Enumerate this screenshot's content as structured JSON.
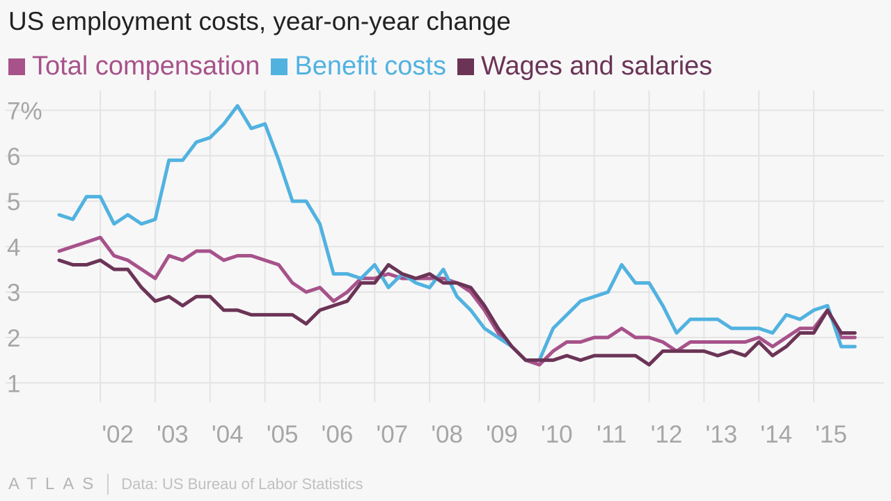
{
  "header": {
    "title": "US employment costs, year-on-year change"
  },
  "legend": {
    "items": [
      {
        "label": "Total compensation",
        "color": "#a7528a"
      },
      {
        "label": "Benefit costs",
        "color": "#51b2e0"
      },
      {
        "label": "Wages and salaries",
        "color": "#6b3456"
      }
    ]
  },
  "footer": {
    "brand": "ATLAS",
    "source": "Data: US Bureau of Labor Statistics"
  },
  "chart_data": {
    "type": "line",
    "x_start": "2001-Q2",
    "x_step": "quarter",
    "x_tick_labels": [
      "'02",
      "'03",
      "'04",
      "'05",
      "'06",
      "'07",
      "'08",
      "'09",
      "'10",
      "'11",
      "'12",
      "'13",
      "'14",
      "'15"
    ],
    "y_tick_labels": [
      "7%",
      "6",
      "5",
      "4",
      "3",
      "2",
      "1"
    ],
    "ylim": [
      0.7,
      7.5
    ],
    "grid": true,
    "legend_position": "top",
    "series": [
      {
        "name": "Total compensation",
        "color": "#a7528a",
        "values": [
          3.9,
          4.0,
          4.1,
          4.2,
          3.8,
          3.7,
          3.5,
          3.3,
          3.8,
          3.7,
          3.9,
          3.9,
          3.7,
          3.8,
          3.8,
          3.7,
          3.6,
          3.2,
          3.0,
          3.1,
          2.8,
          3.0,
          3.3,
          3.3,
          3.4,
          3.3,
          3.3,
          3.3,
          3.3,
          3.2,
          3.0,
          2.6,
          2.1,
          1.8,
          1.5,
          1.4,
          1.7,
          1.9,
          1.9,
          2.0,
          2.0,
          2.2,
          2.0,
          2.0,
          1.9,
          1.7,
          1.9,
          1.9,
          1.9,
          1.9,
          1.9,
          2.0,
          1.8,
          2.0,
          2.2,
          2.2,
          2.6,
          2.0,
          2.0
        ]
      },
      {
        "name": "Benefit costs",
        "color": "#51b2e0",
        "values": [
          4.7,
          4.6,
          5.1,
          5.1,
          4.5,
          4.7,
          4.5,
          4.6,
          5.9,
          5.9,
          6.3,
          6.4,
          6.7,
          7.1,
          6.6,
          6.7,
          5.9,
          5.0,
          5.0,
          4.5,
          3.4,
          3.4,
          3.3,
          3.6,
          3.1,
          3.4,
          3.2,
          3.1,
          3.5,
          2.9,
          2.6,
          2.2,
          2.0,
          1.8,
          1.5,
          1.5,
          2.2,
          2.5,
          2.8,
          2.9,
          3.0,
          3.6,
          3.2,
          3.2,
          2.7,
          2.1,
          2.4,
          2.4,
          2.4,
          2.2,
          2.2,
          2.2,
          2.1,
          2.5,
          2.4,
          2.6,
          2.7,
          1.8,
          1.8
        ]
      },
      {
        "name": "Wages and salaries",
        "color": "#6b3456",
        "values": [
          3.7,
          3.6,
          3.6,
          3.7,
          3.5,
          3.5,
          3.1,
          2.8,
          2.9,
          2.7,
          2.9,
          2.9,
          2.6,
          2.6,
          2.5,
          2.5,
          2.5,
          2.5,
          2.3,
          2.6,
          2.7,
          2.8,
          3.2,
          3.2,
          3.6,
          3.4,
          3.3,
          3.4,
          3.2,
          3.2,
          3.1,
          2.7,
          2.2,
          1.8,
          1.5,
          1.5,
          1.5,
          1.6,
          1.5,
          1.6,
          1.6,
          1.6,
          1.6,
          1.4,
          1.7,
          1.7,
          1.7,
          1.7,
          1.6,
          1.7,
          1.6,
          1.9,
          1.6,
          1.8,
          2.1,
          2.1,
          2.6,
          2.1,
          2.1
        ]
      }
    ]
  }
}
